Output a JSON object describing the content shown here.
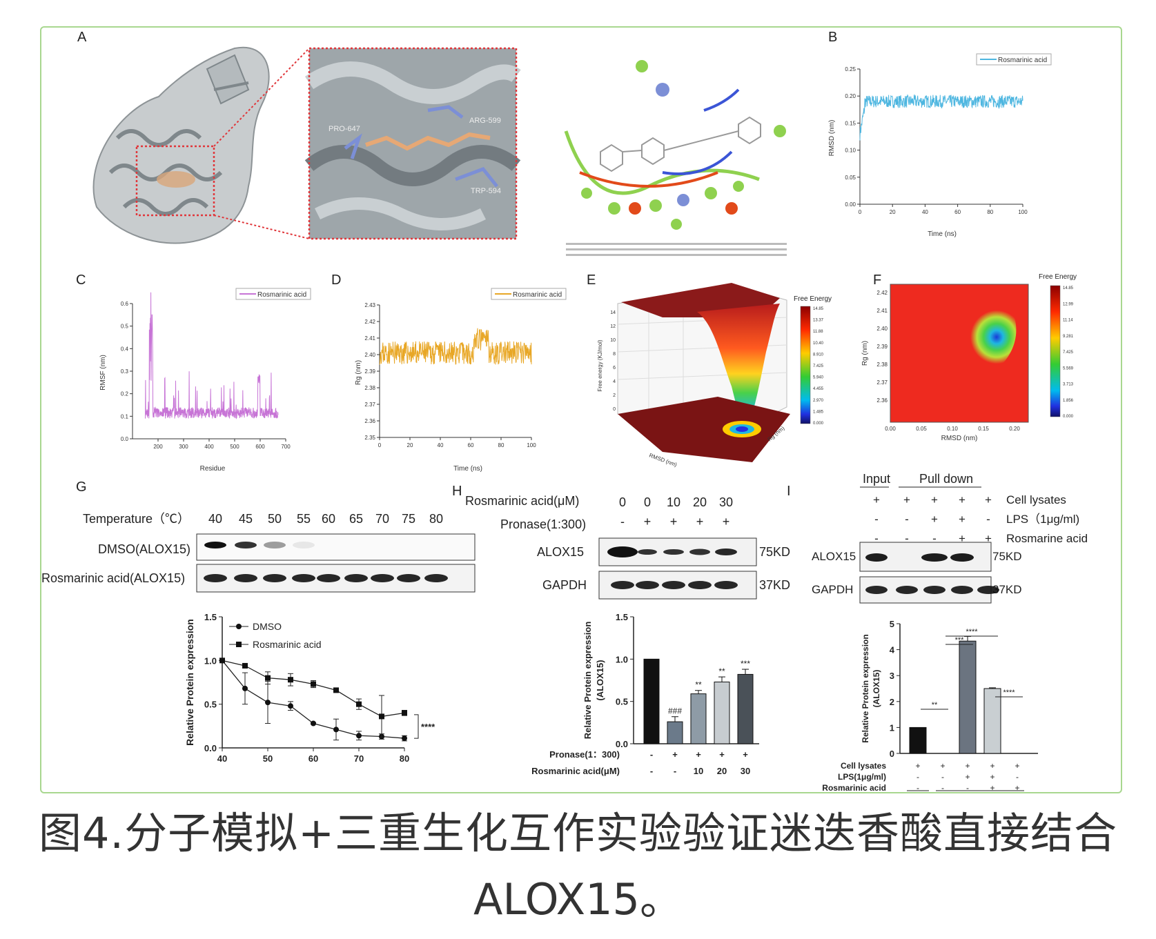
{
  "panel_letters": [
    "A",
    "B",
    "C",
    "D",
    "E",
    "F",
    "G",
    "H",
    "I"
  ],
  "panel_a": {
    "residue_labels": [
      "PRO-647",
      "ARG-599",
      "TRP-594"
    ]
  },
  "panel_b": {
    "chart_data": {
      "type": "line",
      "xlabel": "Time (ns)",
      "ylabel": "RMSD (nm)",
      "xlim": [
        0,
        100
      ],
      "ylim": [
        0,
        0.25
      ],
      "xticks": [
        "0",
        "20",
        "40",
        "60",
        "80",
        "100"
      ],
      "yticks": [
        "0.00",
        "0.05",
        "0.10",
        "0.15",
        "0.20",
        "0.25"
      ],
      "series": [
        {
          "name": "Rosmarinic acid",
          "color": "#4db6e0",
          "baseline": 0.19,
          "noise": 0.012
        }
      ]
    }
  },
  "panel_c": {
    "chart_data": {
      "type": "line",
      "xlabel": "Residue",
      "ylabel": "RMSF (nm)",
      "xlim": [
        100,
        700
      ],
      "ylim": [
        0,
        0.6
      ],
      "xticks": [
        "200",
        "300",
        "400",
        "500",
        "600",
        "700"
      ],
      "yticks": [
        "0.0",
        "0.1",
        "0.2",
        "0.3",
        "0.4",
        "0.5",
        "0.6"
      ],
      "series": [
        {
          "name": "Rosmarinic acid",
          "color": "#c774d6",
          "x_range": [
            150,
            670
          ],
          "baseline": 0.09
        }
      ]
    }
  },
  "panel_d": {
    "chart_data": {
      "type": "line",
      "xlabel": "Time (ns)",
      "ylabel": "Rg (nm)",
      "xlim": [
        0,
        100
      ],
      "ylim": [
        2.35,
        2.43
      ],
      "xticks": [
        "0",
        "20",
        "40",
        "60",
        "80",
        "100"
      ],
      "yticks": [
        "2.35",
        "2.36",
        "2.37",
        "2.38",
        "2.39",
        "2.40",
        "2.41",
        "2.42",
        "2.43"
      ],
      "series": [
        {
          "name": "Rosmarinic acid",
          "color": "#e8a726",
          "baseline": 2.401
        }
      ]
    }
  },
  "panel_e": {
    "title": "Free Energy",
    "zlabel": "Free energy (KJ/mol)",
    "xlabel": "RMSD (nm)",
    "ylabel": "Rg (nm)",
    "zticks": [
      "0",
      "2",
      "4",
      "6",
      "8",
      "10",
      "12",
      "14"
    ],
    "colorbar": [
      "14.85",
      "13.37",
      "11.88",
      "10.40",
      "8.910",
      "7.425",
      "5.940",
      "4.455",
      "2.970",
      "1.485",
      "0.000"
    ]
  },
  "panel_f": {
    "title": "Free Energy",
    "xlabel": "RMSD (nm)",
    "ylabel": "Rg (nm)",
    "xticks": [
      "0.00",
      "0.05",
      "0.10",
      "0.15",
      "0.20"
    ],
    "yticks": [
      "2.36",
      "2.37",
      "2.38",
      "2.39",
      "2.40",
      "2.41",
      "2.42"
    ],
    "colorbar": [
      "14.85",
      "12.99",
      "11.14",
      "9.281",
      "7.425",
      "5.569",
      "3.713",
      "1.856",
      "0.000"
    ]
  },
  "panel_g": {
    "temp_label": "Temperature（℃）",
    "temps": [
      "40",
      "45",
      "50",
      "55",
      "60",
      "65",
      "70",
      "75",
      "80"
    ],
    "row1": "DMSO(ALOX15)",
    "row2": "Rosmarinic acid(ALOX15)",
    "chart_data": {
      "type": "line",
      "ylabel": "Relative Protein expression",
      "x": [
        40,
        45,
        50,
        55,
        60,
        65,
        70,
        75,
        80
      ],
      "xticks": [
        "40",
        "50",
        "60",
        "70",
        "80"
      ],
      "yticks": [
        "0.0",
        "0.5",
        "1.0",
        "1.5"
      ],
      "ylim": [
        0,
        1.5
      ],
      "series": [
        {
          "name": "DMSO",
          "marker": "circle",
          "values": [
            1.0,
            0.68,
            0.52,
            0.48,
            0.28,
            0.21,
            0.14,
            0.13,
            0.11
          ],
          "err": [
            0,
            0.18,
            0.24,
            0.05,
            0.01,
            0.12,
            0.05,
            0.03,
            0.03
          ]
        },
        {
          "name": "Rosmarinic acid",
          "marker": "square",
          "values": [
            1.0,
            0.94,
            0.8,
            0.78,
            0.73,
            0.66,
            0.5,
            0.36,
            0.4
          ],
          "err": [
            0,
            0.02,
            0.07,
            0.07,
            0.04,
            0.02,
            0.06,
            0.24,
            0.03
          ]
        }
      ],
      "significance": "****"
    }
  },
  "panel_h": {
    "rosmarinic_label": "Rosmarinic acid(μM)",
    "pronase_label": "Pronase(1:300)",
    "conc": [
      "0",
      "0",
      "10",
      "20",
      "30"
    ],
    "pronase": [
      "-",
      "+",
      "+",
      "+",
      "+"
    ],
    "band1": "ALOX15",
    "band1_kd": "75KD",
    "band2": "GAPDH",
    "band2_kd": "37KD",
    "chart_data": {
      "type": "bar",
      "ylabel": "Relative Protein expression (ALOX15)",
      "ylim": [
        0,
        1.5
      ],
      "yticks": [
        "0.0",
        "0.5",
        "1.0",
        "1.5"
      ],
      "values": [
        1.0,
        0.26,
        0.59,
        0.73,
        0.82
      ],
      "err": [
        0,
        0.06,
        0.04,
        0.06,
        0.06
      ],
      "colors": [
        "#111111",
        "#6b7a8a",
        "#8e9ba6",
        "#c7ccd0",
        "#4a5158"
      ],
      "stars": [
        "",
        "###",
        "**",
        "**",
        "***"
      ],
      "row1_label": "Pronase(1：300)",
      "row1": [
        "-",
        "+",
        "+",
        "+",
        "+"
      ],
      "row2_label": "Rosmarinic acid(μM)",
      "row2": [
        "-",
        "-",
        "10",
        "20",
        "30"
      ]
    }
  },
  "panel_i": {
    "input_label": "Input",
    "pulldown_label": "Pull down",
    "rows": [
      {
        "label": "Cell lysates",
        "marks": [
          "+",
          "+",
          "+",
          "+",
          "+"
        ]
      },
      {
        "label": "LPS（1μg/ml)",
        "marks": [
          "-",
          "-",
          "+",
          "+",
          "-"
        ]
      },
      {
        "label": "Rosmarine acid",
        "marks": [
          "-",
          "-",
          "-",
          "+",
          "+"
        ]
      }
    ],
    "band1": "ALOX15",
    "band1_kd": "75KD",
    "band2": "GAPDH",
    "band2_kd": "37KD",
    "chart_data": {
      "type": "bar",
      "ylabel": "Relative Protein expression (ALOX15)",
      "ylim": [
        0,
        5
      ],
      "yticks": [
        "0",
        "1",
        "2",
        "3",
        "4",
        "5"
      ],
      "values": [
        1.0,
        0,
        4.33,
        2.5,
        0
      ],
      "err": [
        0,
        0,
        0.18,
        0.03,
        0
      ],
      "colors": [
        "#111111",
        "#888888",
        "#6b7480",
        "#c9cfd2",
        "#999999"
      ],
      "sig": [
        {
          "from": 0,
          "to": 1,
          "label": "**"
        },
        {
          "from": 1,
          "to": 2,
          "label": "***"
        },
        {
          "from": 1,
          "to": 3,
          "label": "****"
        },
        {
          "from": 3,
          "to": 4,
          "label": "****"
        }
      ],
      "rows": [
        {
          "label": "Cell lysates",
          "marks": [
            "+",
            "+",
            "+",
            "+",
            "+"
          ]
        },
        {
          "label": "LPS(1μg/ml)",
          "marks": [
            "-",
            "-",
            "+",
            "+",
            "-"
          ]
        },
        {
          "label": "Rosmarinic acid",
          "marks": [
            "-",
            "-",
            "-",
            "+",
            "+"
          ]
        }
      ],
      "group1": "Input",
      "group2": "Pull down"
    }
  },
  "caption": {
    "line1": "图4.分子模拟+三重生化互作实验验证迷迭香酸直接结合",
    "line2": "ALOX15。"
  }
}
